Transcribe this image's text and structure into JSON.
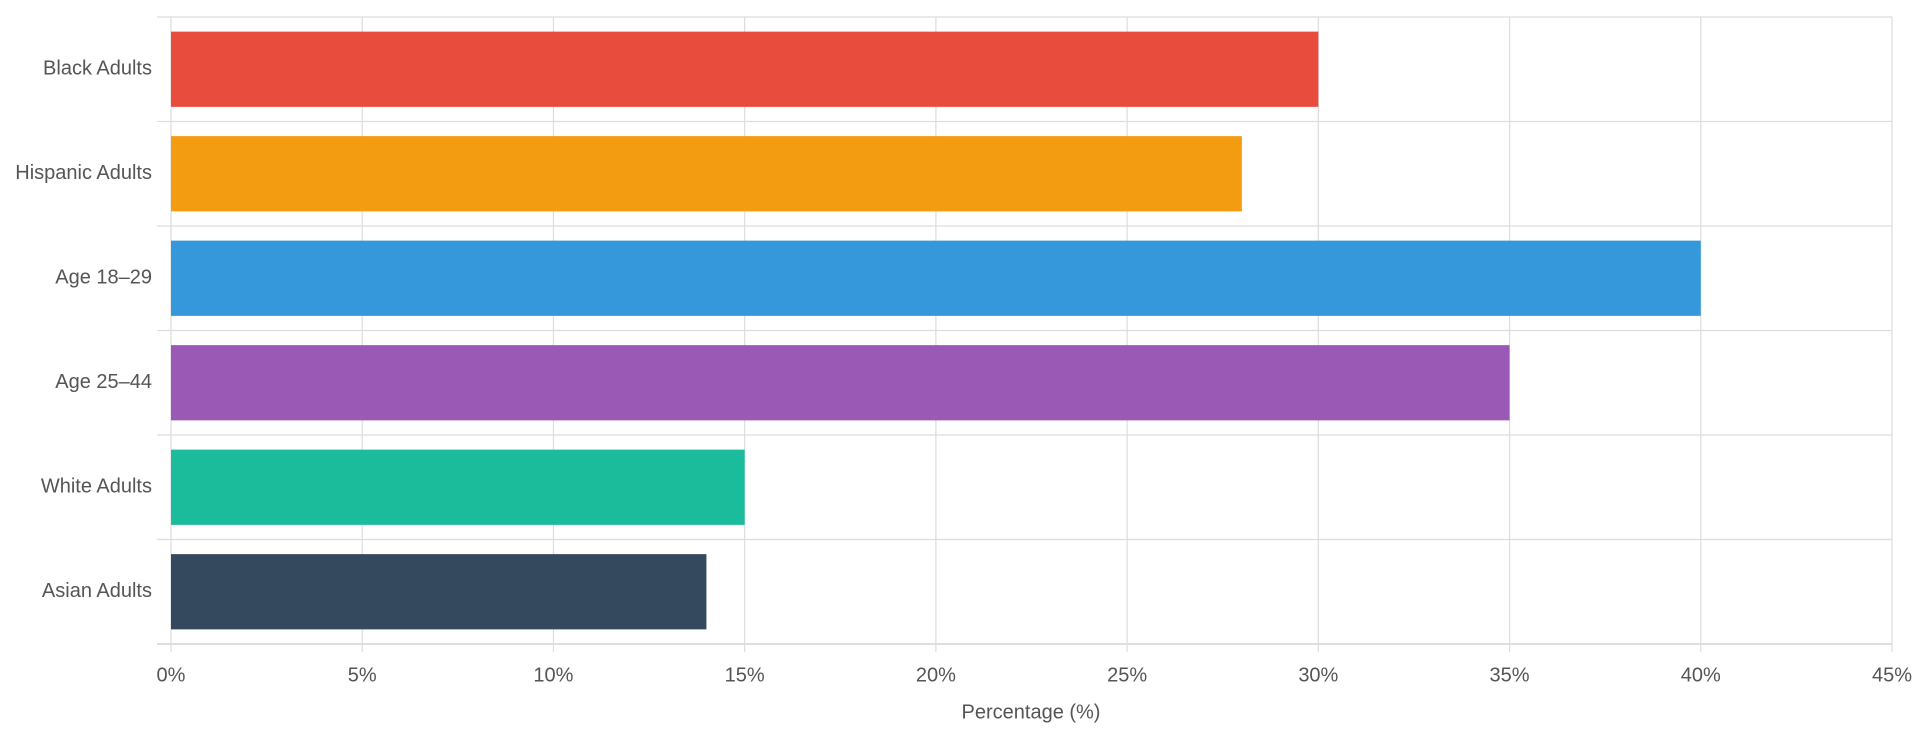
{
  "chart_data": {
    "type": "hbar",
    "categories": [
      "Black Adults",
      "Hispanic Adults",
      "Age 18–29",
      "Age 25–44",
      "White Adults",
      "Asian Adults"
    ],
    "values": [
      30,
      28,
      40,
      35,
      15,
      14
    ],
    "colors": [
      "#e74c3c",
      "#f39c12",
      "#3498db",
      "#9b59b6",
      "#1abc9c",
      "#34495e"
    ],
    "x_label": "Percentage (%)",
    "xlim": [
      0,
      45
    ],
    "xticks": [
      {
        "value": 0,
        "label": "0%"
      },
      {
        "value": 5,
        "label": "5%"
      },
      {
        "value": 10,
        "label": "10%"
      },
      {
        "value": 15,
        "label": "15%"
      },
      {
        "value": 20,
        "label": "20%"
      },
      {
        "value": 25,
        "label": "25%"
      },
      {
        "value": 30,
        "label": "30%"
      },
      {
        "value": 35,
        "label": "35%"
      },
      {
        "value": 40,
        "label": "40%"
      },
      {
        "value": 45,
        "label": "45%"
      }
    ],
    "grid": true
  }
}
